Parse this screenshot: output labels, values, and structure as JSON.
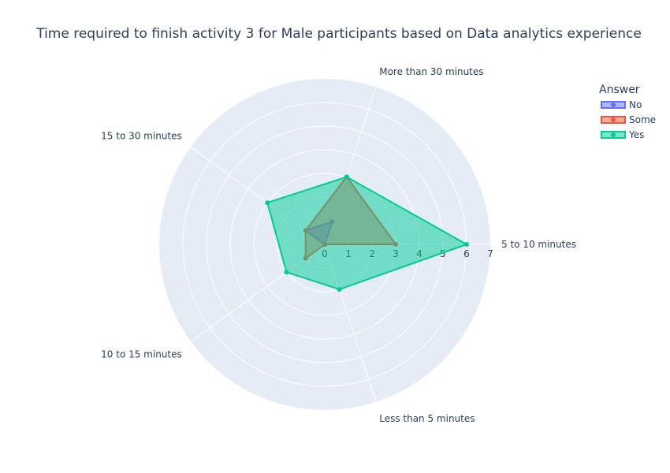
{
  "chart_data": {
    "type": "radar",
    "title": "Time required to finish activity 3 for Male participants based on  Data analytics experience",
    "categories": [
      "5 to 10 minutes",
      "More than 30 minutes",
      "15 to 30 minutes",
      "10 to 15 minutes",
      "Less than 5 minutes"
    ],
    "radial_range": [
      0,
      7
    ],
    "radial_ticks": [
      "0",
      "1",
      "2",
      "3",
      "4",
      "5",
      "6",
      "7"
    ],
    "legend": {
      "title": "Answer",
      "placement": "top-right"
    },
    "series": [
      {
        "name": "No",
        "values": [
          0,
          1,
          1,
          0,
          0
        ],
        "color": "#636efa"
      },
      {
        "name": "Some",
        "values": [
          3,
          3,
          1,
          1,
          0
        ],
        "color": "#ef553b"
      },
      {
        "name": "Yes",
        "values": [
          6,
          3,
          3,
          2,
          2
        ],
        "color": "#00cc96"
      }
    ]
  }
}
